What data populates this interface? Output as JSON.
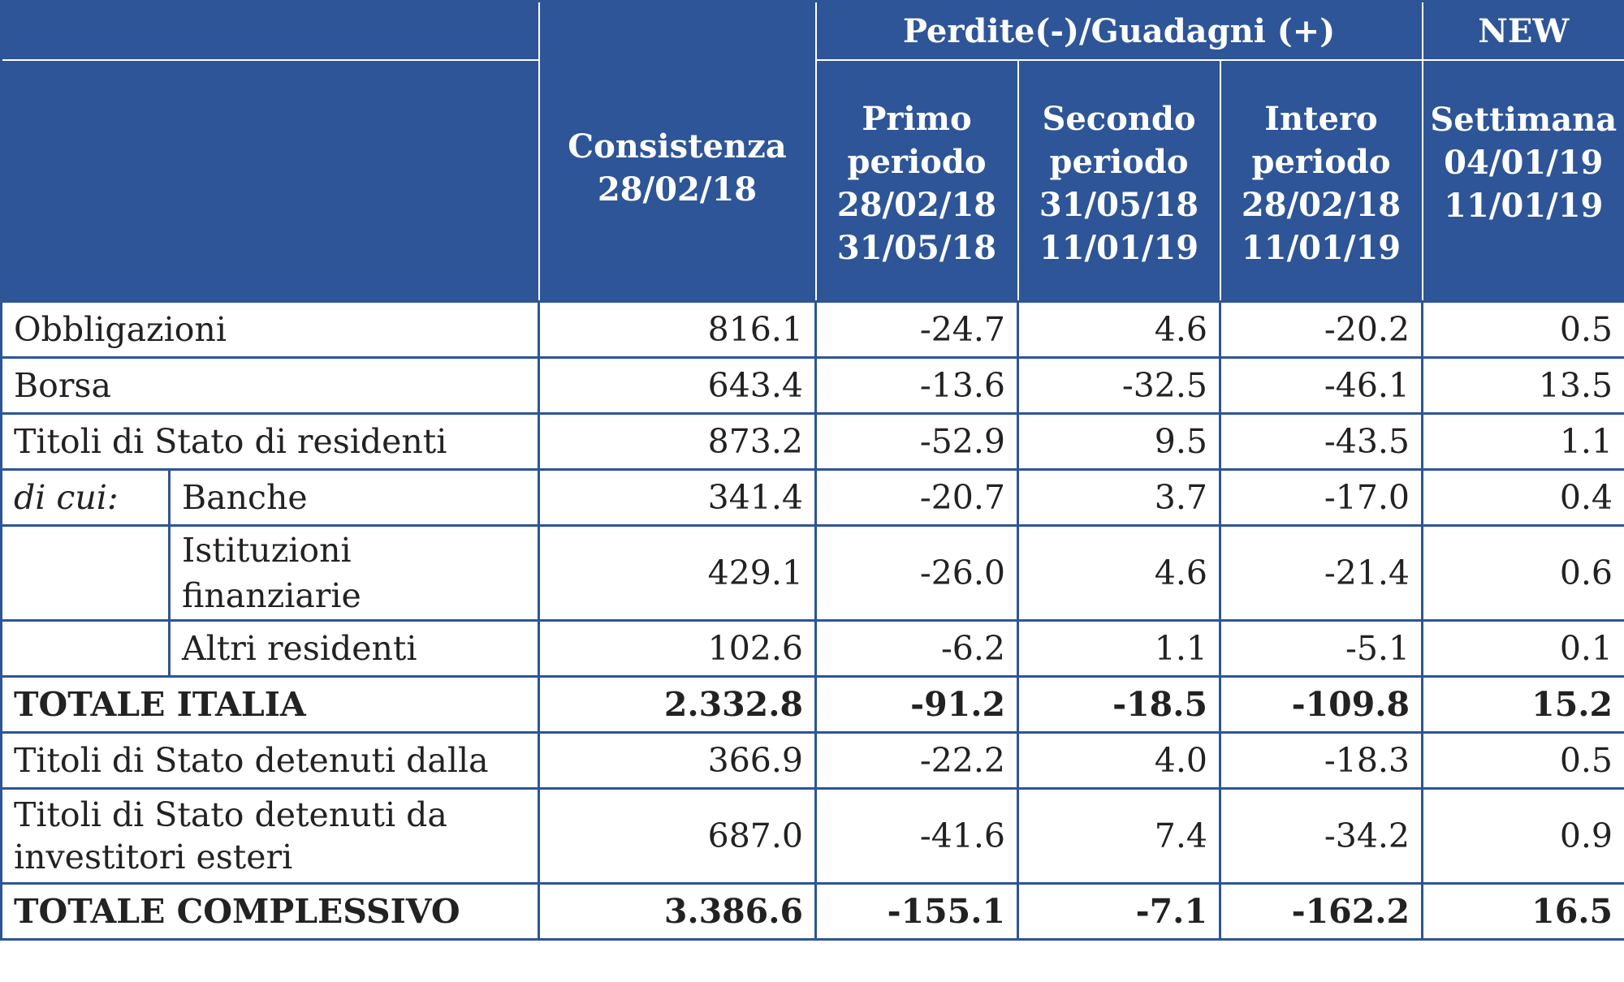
{
  "header": {
    "group_label": "Perdite(-)/Guadagni (+)",
    "new_label": "NEW",
    "col1": "Consistenza 28/02/18",
    "col1_lines": [
      "Consistenza",
      "28/02/18"
    ],
    "col2_lines": [
      "Primo",
      "periodo",
      "28/02/18",
      "31/05/18"
    ],
    "col3_lines": [
      "Secondo",
      "periodo",
      "31/05/18",
      "11/01/19"
    ],
    "col4_lines": [
      "Intero",
      "periodo",
      "28/02/18",
      "11/01/19"
    ],
    "col5_lines": [
      "Settimana",
      "04/01/19",
      "11/01/19"
    ]
  },
  "rows": [
    {
      "label": "Obbligazioni",
      "values": [
        "816.1",
        "-24.7",
        "4.6",
        "-20.2",
        "0.5"
      ]
    },
    {
      "label": "Borsa",
      "values": [
        "643.4",
        "-13.6",
        "-32.5",
        "-46.1",
        "13.5"
      ]
    },
    {
      "label": "Titoli di Stato di residenti",
      "values": [
        "873.2",
        "-52.9",
        "9.5",
        "-43.5",
        "1.1"
      ]
    },
    {
      "prefix": "di cui:",
      "label": "Banche",
      "values": [
        "341.4",
        "-20.7",
        "3.7",
        "-17.0",
        "0.4"
      ]
    },
    {
      "label_lines": [
        "Istituzioni",
        "finanziarie"
      ],
      "values": [
        "429.1",
        "-26.0",
        "4.6",
        "-21.4",
        "0.6"
      ]
    },
    {
      "label": "Altri residenti",
      "values": [
        "102.6",
        "-6.2",
        "1.1",
        "-5.1",
        "0.1"
      ]
    },
    {
      "label": "TOTALE ITALIA",
      "values": [
        "2.332.8",
        "-91.2",
        "-18.5",
        "-109.8",
        "15.2"
      ]
    },
    {
      "label": "Titoli di Stato detenuti dalla",
      "values": [
        "366.9",
        "-22.2",
        "4.0",
        "-18.3",
        "0.5"
      ]
    },
    {
      "label_lines": [
        "Titoli di Stato detenuti da",
        "investitori esteri"
      ],
      "values": [
        "687.0",
        "-41.6",
        "7.4",
        "-34.2",
        "0.9"
      ]
    },
    {
      "label": "TOTALE COMPLESSIVO",
      "values": [
        "3.386.6",
        "-155.1",
        "-7.1",
        "-162.2",
        "16.5"
      ]
    }
  ]
}
